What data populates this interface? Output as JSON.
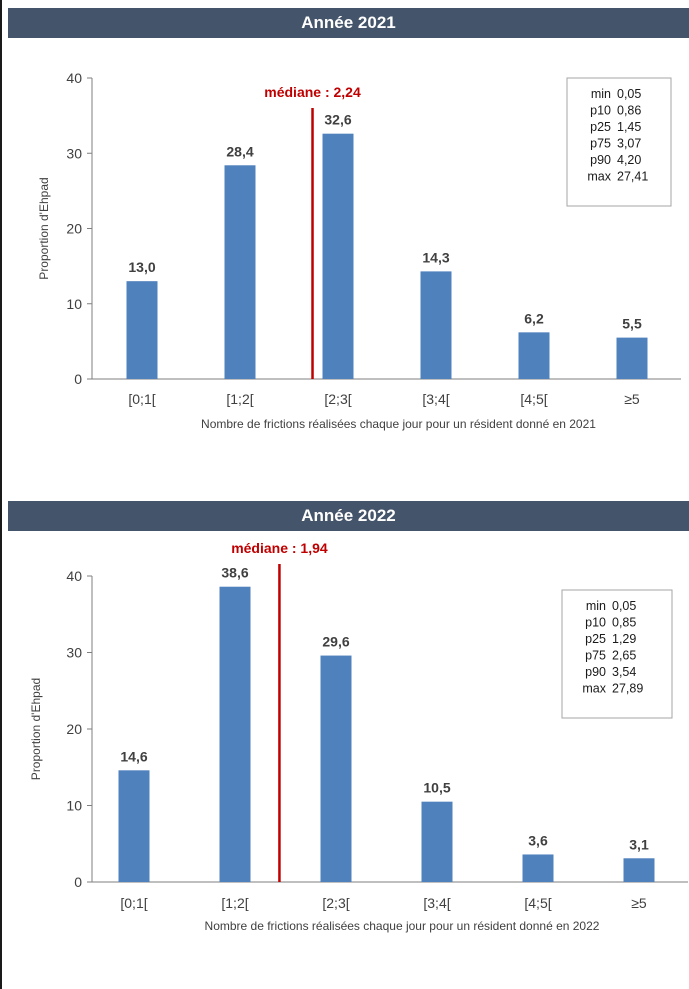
{
  "accent_bar_color": "#4f81bd",
  "median_color": "#c00000",
  "header_color": "#44546a",
  "chart_data": [
    {
      "type": "bar",
      "title": "Année 2021",
      "categories": [
        "[0;1[",
        "[1;2[",
        "[2;3[",
        "[3;4[",
        "[4;5[",
        "≥5"
      ],
      "values": [
        13.0,
        28.4,
        32.6,
        14.3,
        6.2,
        5.5
      ],
      "value_labels": [
        "13,0",
        "28,4",
        "32,6",
        "14,3",
        "6,2",
        "5,5"
      ],
      "xlabel": "Nombre de frictions réalisées chaque jour pour un résident donné en 2021",
      "ylabel": "Proportion d'Ehpad",
      "ylim": [
        0,
        40
      ],
      "yticks": [
        0,
        10,
        20,
        30,
        40
      ],
      "grid": false,
      "median": {
        "label": "médiane : 2,24",
        "value": 2.24
      },
      "stats_box": {
        "position": "top-right",
        "rows": [
          {
            "k": "min",
            "v": "0,05"
          },
          {
            "k": "p10",
            "v": "0,86"
          },
          {
            "k": "p25",
            "v": "1,45"
          },
          {
            "k": "p75",
            "v": "3,07"
          },
          {
            "k": "p90",
            "v": "4,20"
          },
          {
            "k": "max",
            "v": "27,41"
          }
        ]
      }
    },
    {
      "type": "bar",
      "title": "Année 2022",
      "categories": [
        "[0;1[",
        "[1;2[",
        "[2;3[",
        "[3;4[",
        "[4;5[",
        "≥5"
      ],
      "values": [
        14.6,
        38.6,
        29.6,
        10.5,
        3.6,
        3.1
      ],
      "value_labels": [
        "14,6",
        "38,6",
        "29,6",
        "10,5",
        "3,6",
        "3,1"
      ],
      "xlabel": "Nombre de frictions réalisées chaque jour pour un résident donné en 2022",
      "ylabel": "Proportion d'Ehpad",
      "ylim": [
        0,
        40
      ],
      "yticks": [
        0,
        10,
        20,
        30,
        40
      ],
      "grid": false,
      "median": {
        "label": "médiane : 1,94",
        "value": 1.94
      },
      "stats_box": {
        "position": "top-right",
        "rows": [
          {
            "k": "min",
            "v": "0,05"
          },
          {
            "k": "p10",
            "v": "0,85"
          },
          {
            "k": "p25",
            "v": "1,29"
          },
          {
            "k": "p75",
            "v": "2,65"
          },
          {
            "k": "p90",
            "v": "3,54"
          },
          {
            "k": "max",
            "v": "27,89"
          }
        ]
      }
    }
  ]
}
